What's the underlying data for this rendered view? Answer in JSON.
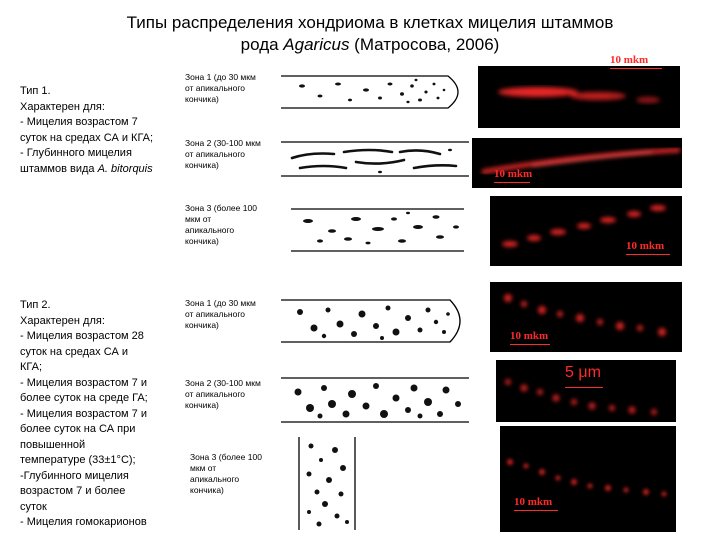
{
  "title": {
    "line1": "Типы распределения хондриома в клетках мицелия штаммов",
    "line2_prefix": "рода ",
    "line2_genus": "Agaricus",
    "line2_suffix": " (Матросова, 2006)"
  },
  "type1": {
    "text": "Тип 1.\nХарактерен для:\n- Мицелия возрастом 7\nсуток на средах СА и КГА;\n- Глубинного мицелия\nштаммов вида ",
    "species": "A. bitorquis"
  },
  "type2": {
    "text": "Тип 2.\nХарактерен для:\n- Мицелия возрастом 28\nсуток на средах СА и\nКГА;\n- Мицелия возрастом 7 и\nболее суток на среде ГА;\n- Мицелия возрастом 7 и\nболее суток на СА при\nповышенной\nтемпературе (33±1°С);\n-Глубинного мицелия\nвозрастом 7 и более\nсуток\n- Мицелия гомокарионов"
  },
  "zones": {
    "t1z1": "Зона 1 (до 30 мкм\nот апикального\nкончика)",
    "t1z2": "Зона 2 (30-100 мкм\nот апикального\nкончика)",
    "t1z3": "Зона 3 (более 100\nмкм от\nапикального\nкончика)",
    "t2z1": "Зона 1 (до 30 мкм\nот апикального\nкончика)",
    "t2z2": "Зона 2 (30-100 мкм\nот апикального\nкончика)",
    "t2z3": "Зона 3 (более 100\nмкм от\nапикального\nкончика)"
  },
  "scale_bars": {
    "m1": "10 mkm",
    "m2": "10 mkm",
    "m3": "10 mkm",
    "m4": "10 mkm",
    "m5": "5 μm",
    "m6": "10 mkm"
  },
  "colors": {
    "fluorescence": "#ff2a2a",
    "background": "#000000"
  }
}
